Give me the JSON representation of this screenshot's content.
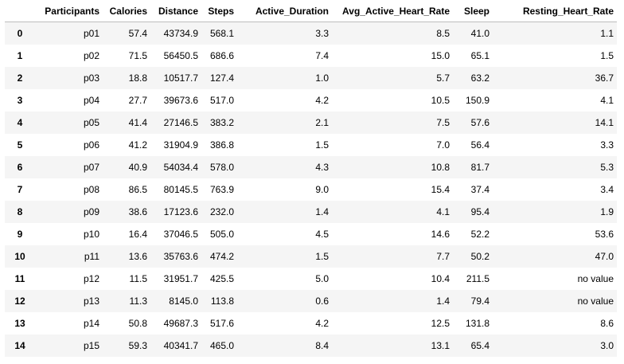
{
  "table": {
    "columns": [
      "",
      "Participants",
      "Calories",
      "Distance",
      "Steps",
      "Active_Duration",
      "Avg_Active_Heart_Rate",
      "Sleep",
      "Resting_Heart_Rate"
    ],
    "rows": [
      [
        "0",
        "p01",
        "57.4",
        "43734.9",
        "568.1",
        "3.3",
        "8.5",
        "41.0",
        "1.1"
      ],
      [
        "1",
        "p02",
        "71.5",
        "56450.5",
        "686.6",
        "7.4",
        "15.0",
        "65.1",
        "1.5"
      ],
      [
        "2",
        "p03",
        "18.8",
        "10517.7",
        "127.4",
        "1.0",
        "5.7",
        "63.2",
        "36.7"
      ],
      [
        "3",
        "p04",
        "27.7",
        "39673.6",
        "517.0",
        "4.2",
        "10.5",
        "150.9",
        "4.1"
      ],
      [
        "4",
        "p05",
        "41.4",
        "27146.5",
        "383.2",
        "2.1",
        "7.5",
        "57.6",
        "14.1"
      ],
      [
        "5",
        "p06",
        "41.2",
        "31904.9",
        "386.8",
        "1.5",
        "7.0",
        "56.4",
        "3.3"
      ],
      [
        "6",
        "p07",
        "40.9",
        "54034.4",
        "578.0",
        "4.3",
        "10.8",
        "81.7",
        "5.3"
      ],
      [
        "7",
        "p08",
        "86.5",
        "80145.5",
        "763.9",
        "9.0",
        "15.4",
        "37.4",
        "3.4"
      ],
      [
        "8",
        "p09",
        "38.6",
        "17123.6",
        "232.0",
        "1.4",
        "4.1",
        "95.4",
        "1.9"
      ],
      [
        "9",
        "p10",
        "16.4",
        "37046.5",
        "505.0",
        "4.5",
        "14.6",
        "52.2",
        "53.6"
      ],
      [
        "10",
        "p11",
        "13.6",
        "35763.6",
        "474.2",
        "1.5",
        "7.7",
        "50.2",
        "47.0"
      ],
      [
        "11",
        "p12",
        "11.5",
        "31951.7",
        "425.5",
        "5.0",
        "10.4",
        "211.5",
        "no value"
      ],
      [
        "12",
        "p13",
        "11.3",
        "8145.0",
        "113.8",
        "0.6",
        "1.4",
        "79.4",
        "no value"
      ],
      [
        "13",
        "p14",
        "50.8",
        "49687.3",
        "517.6",
        "4.2",
        "12.5",
        "131.8",
        "8.6"
      ],
      [
        "14",
        "p15",
        "59.3",
        "40341.7",
        "465.0",
        "8.4",
        "13.1",
        "65.4",
        "3.0"
      ]
    ]
  }
}
